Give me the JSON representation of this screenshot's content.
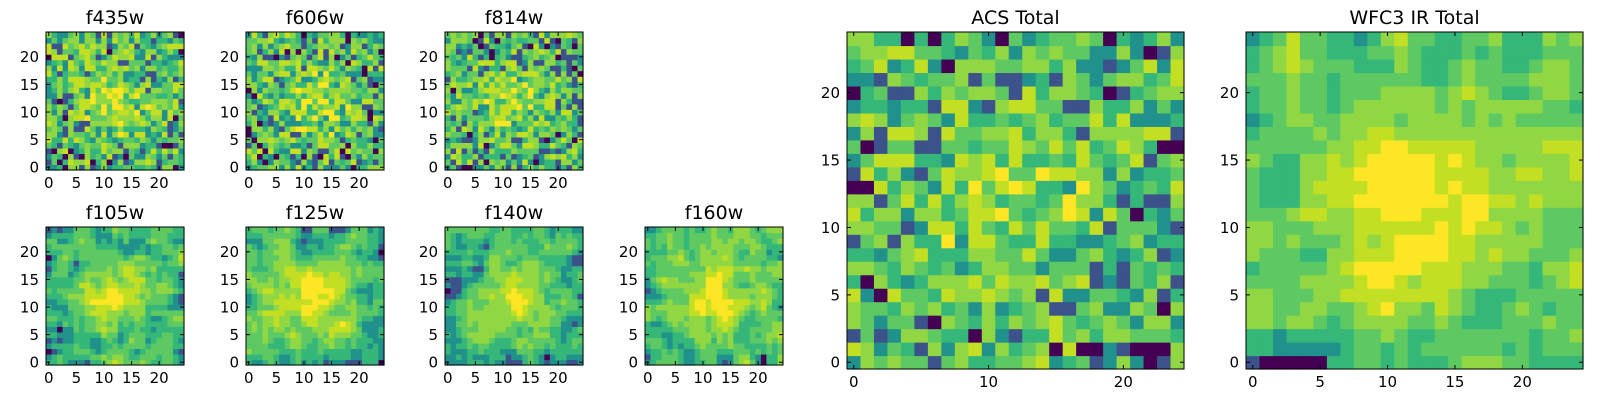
{
  "palette": [
    "#440154",
    "#3b528b",
    "#21918c",
    "#35b779",
    "#5ec962",
    "#90d743",
    "#c2df23",
    "#fde725"
  ],
  "chart_data": [
    {
      "type": "heatmap",
      "title": "f435w",
      "x_ticks": [
        0,
        5,
        10,
        15,
        20
      ],
      "y_ticks": [
        0,
        5,
        10,
        15,
        20
      ],
      "xlim": [
        0,
        24
      ],
      "ylim": [
        0,
        24
      ],
      "grid": false,
      "cmap": "viridis",
      "texture": "noisy",
      "seed": 11
    },
    {
      "type": "heatmap",
      "title": "f606w",
      "x_ticks": [
        0,
        5,
        10,
        15,
        20
      ],
      "y_ticks": [
        0,
        5,
        10,
        15,
        20
      ],
      "xlim": [
        0,
        24
      ],
      "ylim": [
        0,
        24
      ],
      "grid": false,
      "cmap": "viridis",
      "texture": "noisy",
      "seed": 23
    },
    {
      "type": "heatmap",
      "title": "f814w",
      "x_ticks": [
        0,
        5,
        10,
        15,
        20
      ],
      "y_ticks": [
        0,
        5,
        10,
        15,
        20
      ],
      "xlim": [
        0,
        24
      ],
      "ylim": [
        0,
        24
      ],
      "grid": false,
      "cmap": "viridis",
      "texture": "noisy",
      "seed": 37
    },
    {
      "type": "heatmap",
      "title": "f105w",
      "x_ticks": [
        0,
        5,
        10,
        15,
        20
      ],
      "y_ticks": [
        0,
        5,
        10,
        15,
        20
      ],
      "xlim": [
        0,
        24
      ],
      "ylim": [
        0,
        24
      ],
      "grid": false,
      "cmap": "viridis",
      "texture": "smooth",
      "seed": 41
    },
    {
      "type": "heatmap",
      "title": "f125w",
      "x_ticks": [
        0,
        5,
        10,
        15,
        20
      ],
      "y_ticks": [
        0,
        5,
        10,
        15,
        20
      ],
      "xlim": [
        0,
        24
      ],
      "ylim": [
        0,
        24
      ],
      "grid": false,
      "cmap": "viridis",
      "texture": "smooth",
      "seed": 53
    },
    {
      "type": "heatmap",
      "title": "f140w",
      "x_ticks": [
        0,
        5,
        10,
        15,
        20
      ],
      "y_ticks": [
        0,
        5,
        10,
        15,
        20
      ],
      "xlim": [
        0,
        24
      ],
      "ylim": [
        0,
        24
      ],
      "grid": false,
      "cmap": "viridis",
      "texture": "smooth",
      "seed": 67
    },
    {
      "type": "heatmap",
      "title": "f160w",
      "x_ticks": [
        0,
        5,
        10,
        15,
        20
      ],
      "y_ticks": [
        0,
        5,
        10,
        15,
        20
      ],
      "xlim": [
        0,
        24
      ],
      "ylim": [
        0,
        24
      ],
      "grid": false,
      "cmap": "viridis",
      "texture": "smooth",
      "seed": 79
    },
    {
      "type": "heatmap",
      "title": "ACS Total",
      "x_ticks": [
        0,
        10,
        20
      ],
      "y_ticks": [
        0,
        5,
        10,
        15,
        20
      ],
      "xlim": [
        0,
        24
      ],
      "ylim": [
        0,
        24
      ],
      "grid": false,
      "cmap": "viridis",
      "texture": "noisy",
      "seed": 83
    },
    {
      "type": "heatmap",
      "title": "WFC3 IR Total",
      "x_ticks": [
        0,
        5,
        10,
        15,
        20
      ],
      "y_ticks": [
        0,
        5,
        10,
        15,
        20
      ],
      "xlim": [
        0,
        24
      ],
      "ylim": [
        0,
        24
      ],
      "grid": false,
      "cmap": "viridis",
      "texture": "smooth",
      "seed": 97
    }
  ]
}
